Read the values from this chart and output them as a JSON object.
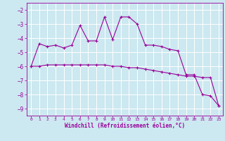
{
  "title": "",
  "xlabel": "Windchill (Refroidissement éolien,°C)",
  "ylabel": "",
  "background_color": "#cce8f0",
  "line_color": "#990099",
  "x": [
    0,
    1,
    2,
    3,
    4,
    5,
    6,
    7,
    8,
    9,
    10,
    11,
    12,
    13,
    14,
    15,
    16,
    17,
    18,
    19,
    20,
    21,
    22,
    23
  ],
  "line1_y": [
    -6.0,
    -4.4,
    -4.6,
    -4.5,
    -4.7,
    -4.5,
    -3.1,
    -4.2,
    -4.2,
    -2.5,
    -4.1,
    -2.5,
    -2.5,
    -3.0,
    -4.5,
    -4.5,
    -4.6,
    -4.8,
    -4.9,
    -6.6,
    -6.6,
    -8.0,
    -8.1,
    -8.8
  ],
  "line2_y": [
    -6.0,
    -6.0,
    -5.9,
    -5.9,
    -5.9,
    -5.9,
    -5.9,
    -5.9,
    -5.9,
    -5.9,
    -6.0,
    -6.0,
    -6.1,
    -6.1,
    -6.2,
    -6.3,
    -6.4,
    -6.5,
    -6.6,
    -6.7,
    -6.7,
    -6.8,
    -6.8,
    -8.8
  ],
  "ylim": [
    -9.5,
    -1.5
  ],
  "xlim": [
    -0.5,
    23.5
  ],
  "yticks": [
    -9,
    -8,
    -7,
    -6,
    -5,
    -4,
    -3,
    -2
  ],
  "xticks": [
    0,
    1,
    2,
    3,
    4,
    5,
    6,
    7,
    8,
    9,
    10,
    11,
    12,
    13,
    14,
    15,
    16,
    17,
    18,
    19,
    20,
    21,
    22,
    23
  ],
  "figsize": [
    3.2,
    2.0
  ],
  "dpi": 100
}
